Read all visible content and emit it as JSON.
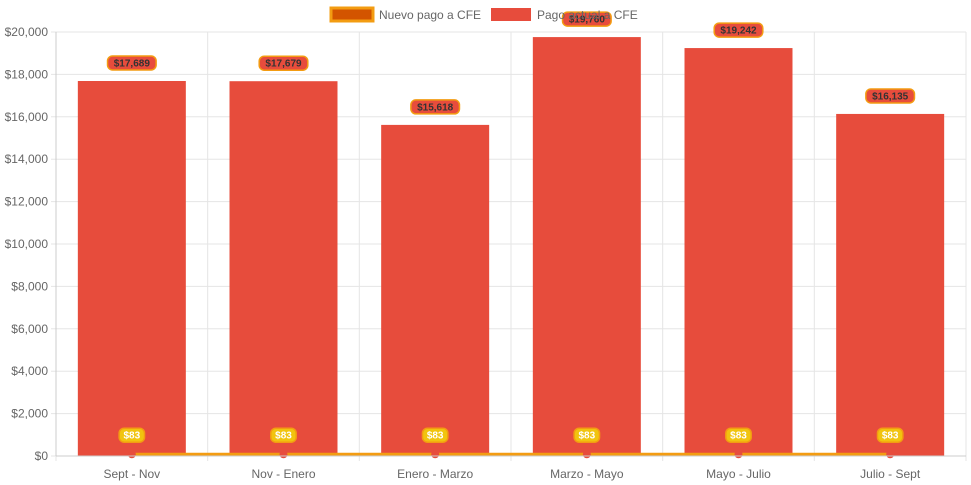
{
  "chart_data": {
    "type": "bar",
    "categories": [
      "Sept - Nov",
      "Nov - Enero",
      "Enero - Marzo",
      "Marzo - Mayo",
      "Mayo - Julio",
      "Julio - Sept"
    ],
    "series": [
      {
        "name": "Nuevo pago a CFE",
        "type": "line",
        "values": [
          83,
          83,
          83,
          83,
          83,
          83
        ],
        "labels": [
          "$83",
          "$83",
          "$83",
          "$83",
          "$83",
          "$83"
        ],
        "color": "#f39c12",
        "point_color": "#e74c3c"
      },
      {
        "name": "Pago actual a CFE",
        "type": "bar",
        "values": [
          17689,
          17679,
          15618,
          19760,
          19242,
          16135
        ],
        "labels": [
          "$17,689",
          "$17,679",
          "$15,618",
          "$19,760",
          "$19,242",
          "$16,135"
        ],
        "color": "#e74c3c"
      }
    ],
    "y_ticks": [
      {
        "value": 0,
        "label": "$0"
      },
      {
        "value": 2000,
        "label": "$2,000"
      },
      {
        "value": 4000,
        "label": "$4,000"
      },
      {
        "value": 6000,
        "label": "$6,000"
      },
      {
        "value": 8000,
        "label": "$8,000"
      },
      {
        "value": 10000,
        "label": "$10,000"
      },
      {
        "value": 12000,
        "label": "$12,000"
      },
      {
        "value": 14000,
        "label": "$14,000"
      },
      {
        "value": 16000,
        "label": "$16,000"
      },
      {
        "value": 18000,
        "label": "$18,000"
      },
      {
        "value": 20000,
        "label": "$20,000"
      }
    ],
    "title": "",
    "xlabel": "",
    "ylabel": "",
    "ylim": [
      0,
      20000
    ],
    "grid": true,
    "legend_position": "top",
    "colors": {
      "grid": "#e5e5e5",
      "axis": "#cccccc",
      "label_badge_fill": "#f39c12",
      "bar_label_badge_fill": "#e74c3c",
      "bar_label_badge_stroke": "#f39c12",
      "line_label_badge_fill": "#f1c40f",
      "line_label_badge_stroke": "#f39c12"
    }
  }
}
